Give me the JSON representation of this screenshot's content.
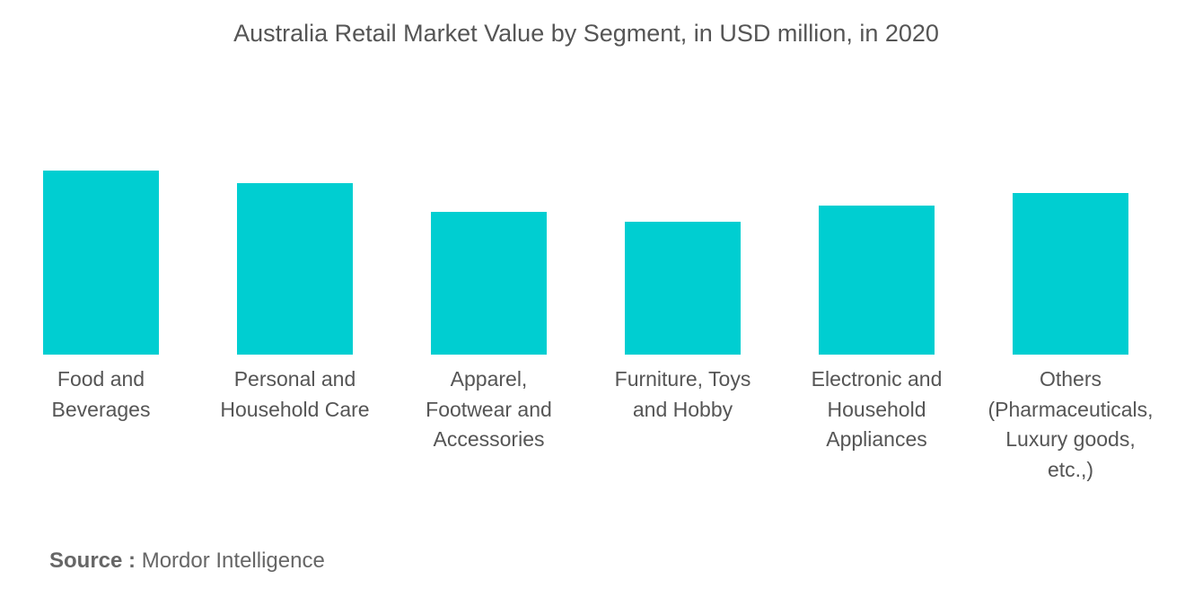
{
  "chart_data": {
    "type": "bar",
    "title": "Australia Retail Market Value by Segment, in USD million, in 2020",
    "categories": [
      "Food and\nBeverages",
      "Personal and\nHousehold Care",
      "Apparel,\nFootwear and\nAccessories",
      "Furniture, Toys\nand Hobby",
      "Electronic and\nHousehold\nAppliances",
      "Others\n(Pharmaceuticals,\nLuxury goods,\netc.,)"
    ],
    "values": [
      205,
      191,
      159,
      148,
      166,
      180
    ],
    "value_note": "relative values (no axis shown)",
    "ylim": [
      0,
      205
    ],
    "xlabel": "",
    "ylabel": "",
    "grid": false,
    "bar_color": "#00CED1"
  },
  "source": {
    "label": "Source :",
    "text": "Mordor Intelligence"
  }
}
